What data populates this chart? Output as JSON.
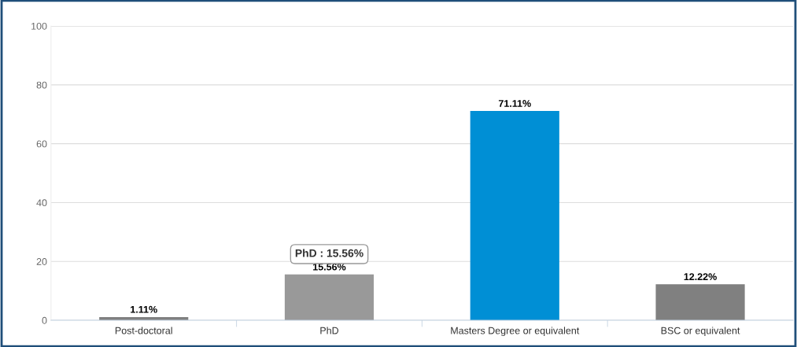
{
  "chart_data": {
    "type": "bar",
    "categories": [
      "Post-doctoral",
      "PhD",
      "Masters Degree or equivalent",
      "BSC or equivalent"
    ],
    "values": [
      1.11,
      15.56,
      71.11,
      12.22
    ],
    "colors": [
      "#808080",
      "#999999",
      "#008fd5",
      "#808080"
    ],
    "value_labels": [
      "1.11%",
      "15.56%",
      "71.11%",
      "12.22%"
    ],
    "ylim": [
      0,
      100
    ],
    "yticks": [
      0,
      20,
      40,
      60,
      80,
      100
    ],
    "grid": "y",
    "legend": false,
    "annotations": [
      {
        "text": "PhD : 15.56%",
        "x": "PhD",
        "y": 15.56
      }
    ]
  }
}
